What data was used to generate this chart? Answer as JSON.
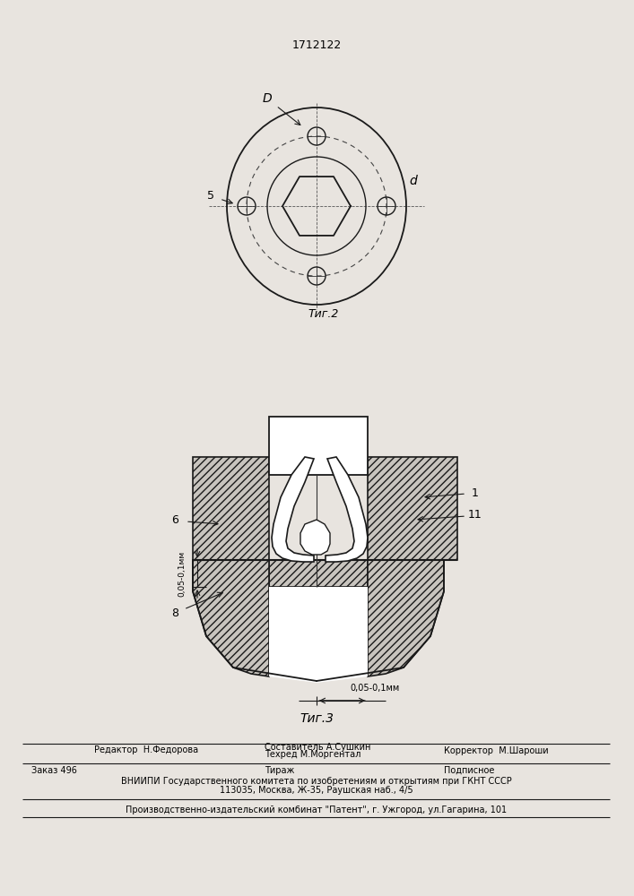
{
  "patent_number": "1712122",
  "fig2_caption": "Τиг.2",
  "fig3_caption": "Τиг.3",
  "label_D": "D",
  "label_d": "d",
  "label_5": "5",
  "label_1": "1",
  "label_11": "11",
  "label_6": "6",
  "label_8": "8",
  "dim_vert": "0,05-0,1мм",
  "dim_horiz": "0,05-0,1мм",
  "editor_line": "Редактор  Н.Федорова",
  "composer_line": "Составитель А.Сушкин",
  "techred_line": "Техред М.Моргентал",
  "corrector_line": "Корректор  М.Шароши",
  "order_line": "Заказ 496",
  "tirazh_line": "Тираж",
  "podpisnoe_line": "Подписное",
  "vniip_line": "ВНИИПИ Государственного комитета по изобретениям и открытиям при ГКНТ СССР",
  "address_line": "113035, Москва, Ж-35, Раушская наб., 4/5",
  "production_line": "Производственно-издательский комбинат \"Патент\", г. Ужгород, ул.Гагарина, 101",
  "bg_color": "#e8e4df",
  "line_color": "#1a1a1a",
  "hatch_bg": "#c8c4be"
}
